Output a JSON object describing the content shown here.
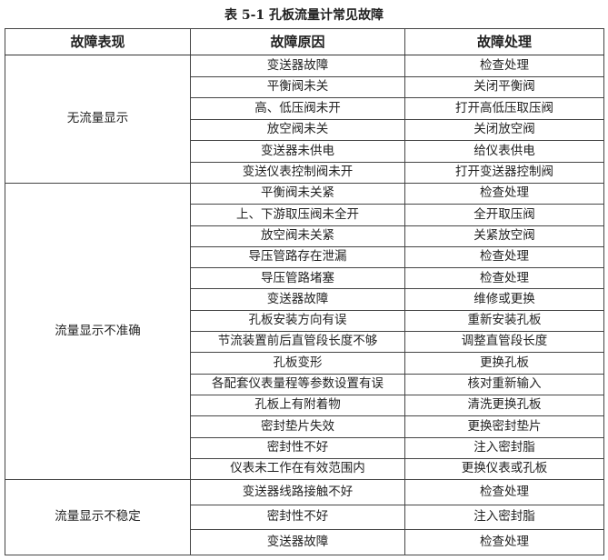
{
  "title": "表 5-1  孔板流量计常见故障",
  "headers": [
    "故障表现",
    "故障原因",
    "故障处理"
  ],
  "groups": [
    {
      "symptom": "无流量显示",
      "rows": [
        {
          "cause": "变送器故障",
          "action": "检查处理"
        },
        {
          "cause": "平衡阀未关",
          "action": "关闭平衡阀"
        },
        {
          "cause": "高、低压阀未开",
          "action": "打开高低压取压阀"
        },
        {
          "cause": "放空阀未关",
          "action": "关闭放空阀"
        },
        {
          "cause": "变送器未供电",
          "action": "给仪表供电"
        },
        {
          "cause": "变送仪表控制阀未开",
          "action": "打开变送器控制阀"
        }
      ]
    },
    {
      "symptom": "流量显示不准确",
      "rows": [
        {
          "cause": "平衡阀未关紧",
          "action": "检查处理"
        },
        {
          "cause": "上、下游取压阀未全开",
          "action": "全开取压阀"
        },
        {
          "cause": "放空阀未关紧",
          "action": "关紧放空阀"
        },
        {
          "cause": "导压管路存在泄漏",
          "action": "检查处理"
        },
        {
          "cause": "导压管路堵塞",
          "action": "检查处理"
        },
        {
          "cause": "变送器故障",
          "action": "维修或更换"
        },
        {
          "cause": "孔板安装方向有误",
          "action": "重新安装孔板"
        },
        {
          "cause": "节流装置前后直管段长度不够",
          "action": "调整直管段长度"
        },
        {
          "cause": "孔板变形",
          "action": "更换孔板"
        },
        {
          "cause": "各配套仪表量程等参数设置有误",
          "action": "核对重新输入"
        },
        {
          "cause": "孔板上有附着物",
          "action": "清洗更换孔板"
        },
        {
          "cause": "密封垫片失效",
          "action": "更换密封垫片"
        },
        {
          "cause": "密封性不好",
          "action": "注入密封脂"
        },
        {
          "cause": "仪表未工作在有效范围内",
          "action": "更换仪表或孔板"
        }
      ]
    },
    {
      "symptom": "流量显示不稳定",
      "rows": [
        {
          "cause": "变送器线路接触不好",
          "action": "检查处理"
        },
        {
          "cause": "密封性不好",
          "action": "注入密封脂"
        },
        {
          "cause": "变送器故障",
          "action": "检查处理"
        }
      ]
    }
  ]
}
